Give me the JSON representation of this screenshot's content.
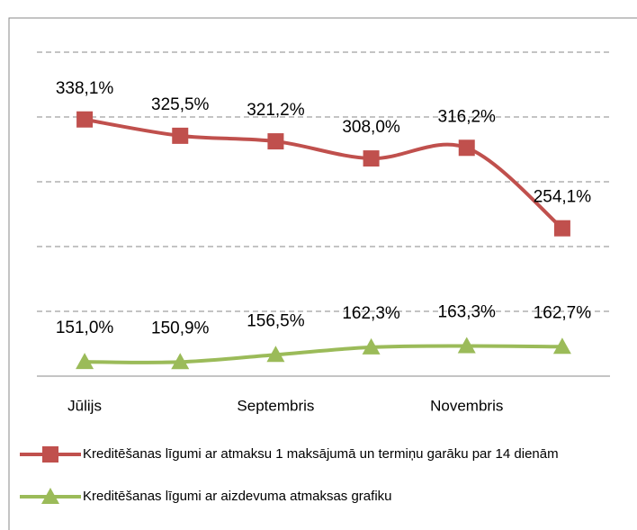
{
  "chart_data": {
    "type": "line",
    "categories": [
      "Jūlijs",
      null,
      "Septembris",
      null,
      "Novembris",
      null
    ],
    "series": [
      {
        "name": "Kreditēšanas līgumi ar atmaksu 1 maksājumā un termiņu garāku par 14 dienām",
        "color": "#c0504d",
        "marker": "square",
        "values": [
          338.1,
          325.5,
          321.2,
          308.0,
          316.2,
          254.1
        ],
        "value_labels": [
          "338,1%",
          "325,5%",
          "321,2%",
          "308,0%",
          "316,2%",
          "254,1%"
        ]
      },
      {
        "name": "Kreditēšanas līgumi ar aizdevuma atmaksas grafiku",
        "color": "#9bbb59",
        "marker": "triangle",
        "values": [
          151.0,
          150.9,
          156.5,
          162.3,
          163.3,
          162.7
        ],
        "value_labels": [
          "151,0%",
          "150,9%",
          "156,5%",
          "162,3%",
          "163,3%",
          "162,7%"
        ]
      }
    ],
    "ylim": [
      140,
      390
    ],
    "yticks": [
      190,
      240,
      290,
      340,
      390
    ],
    "grid": true
  }
}
